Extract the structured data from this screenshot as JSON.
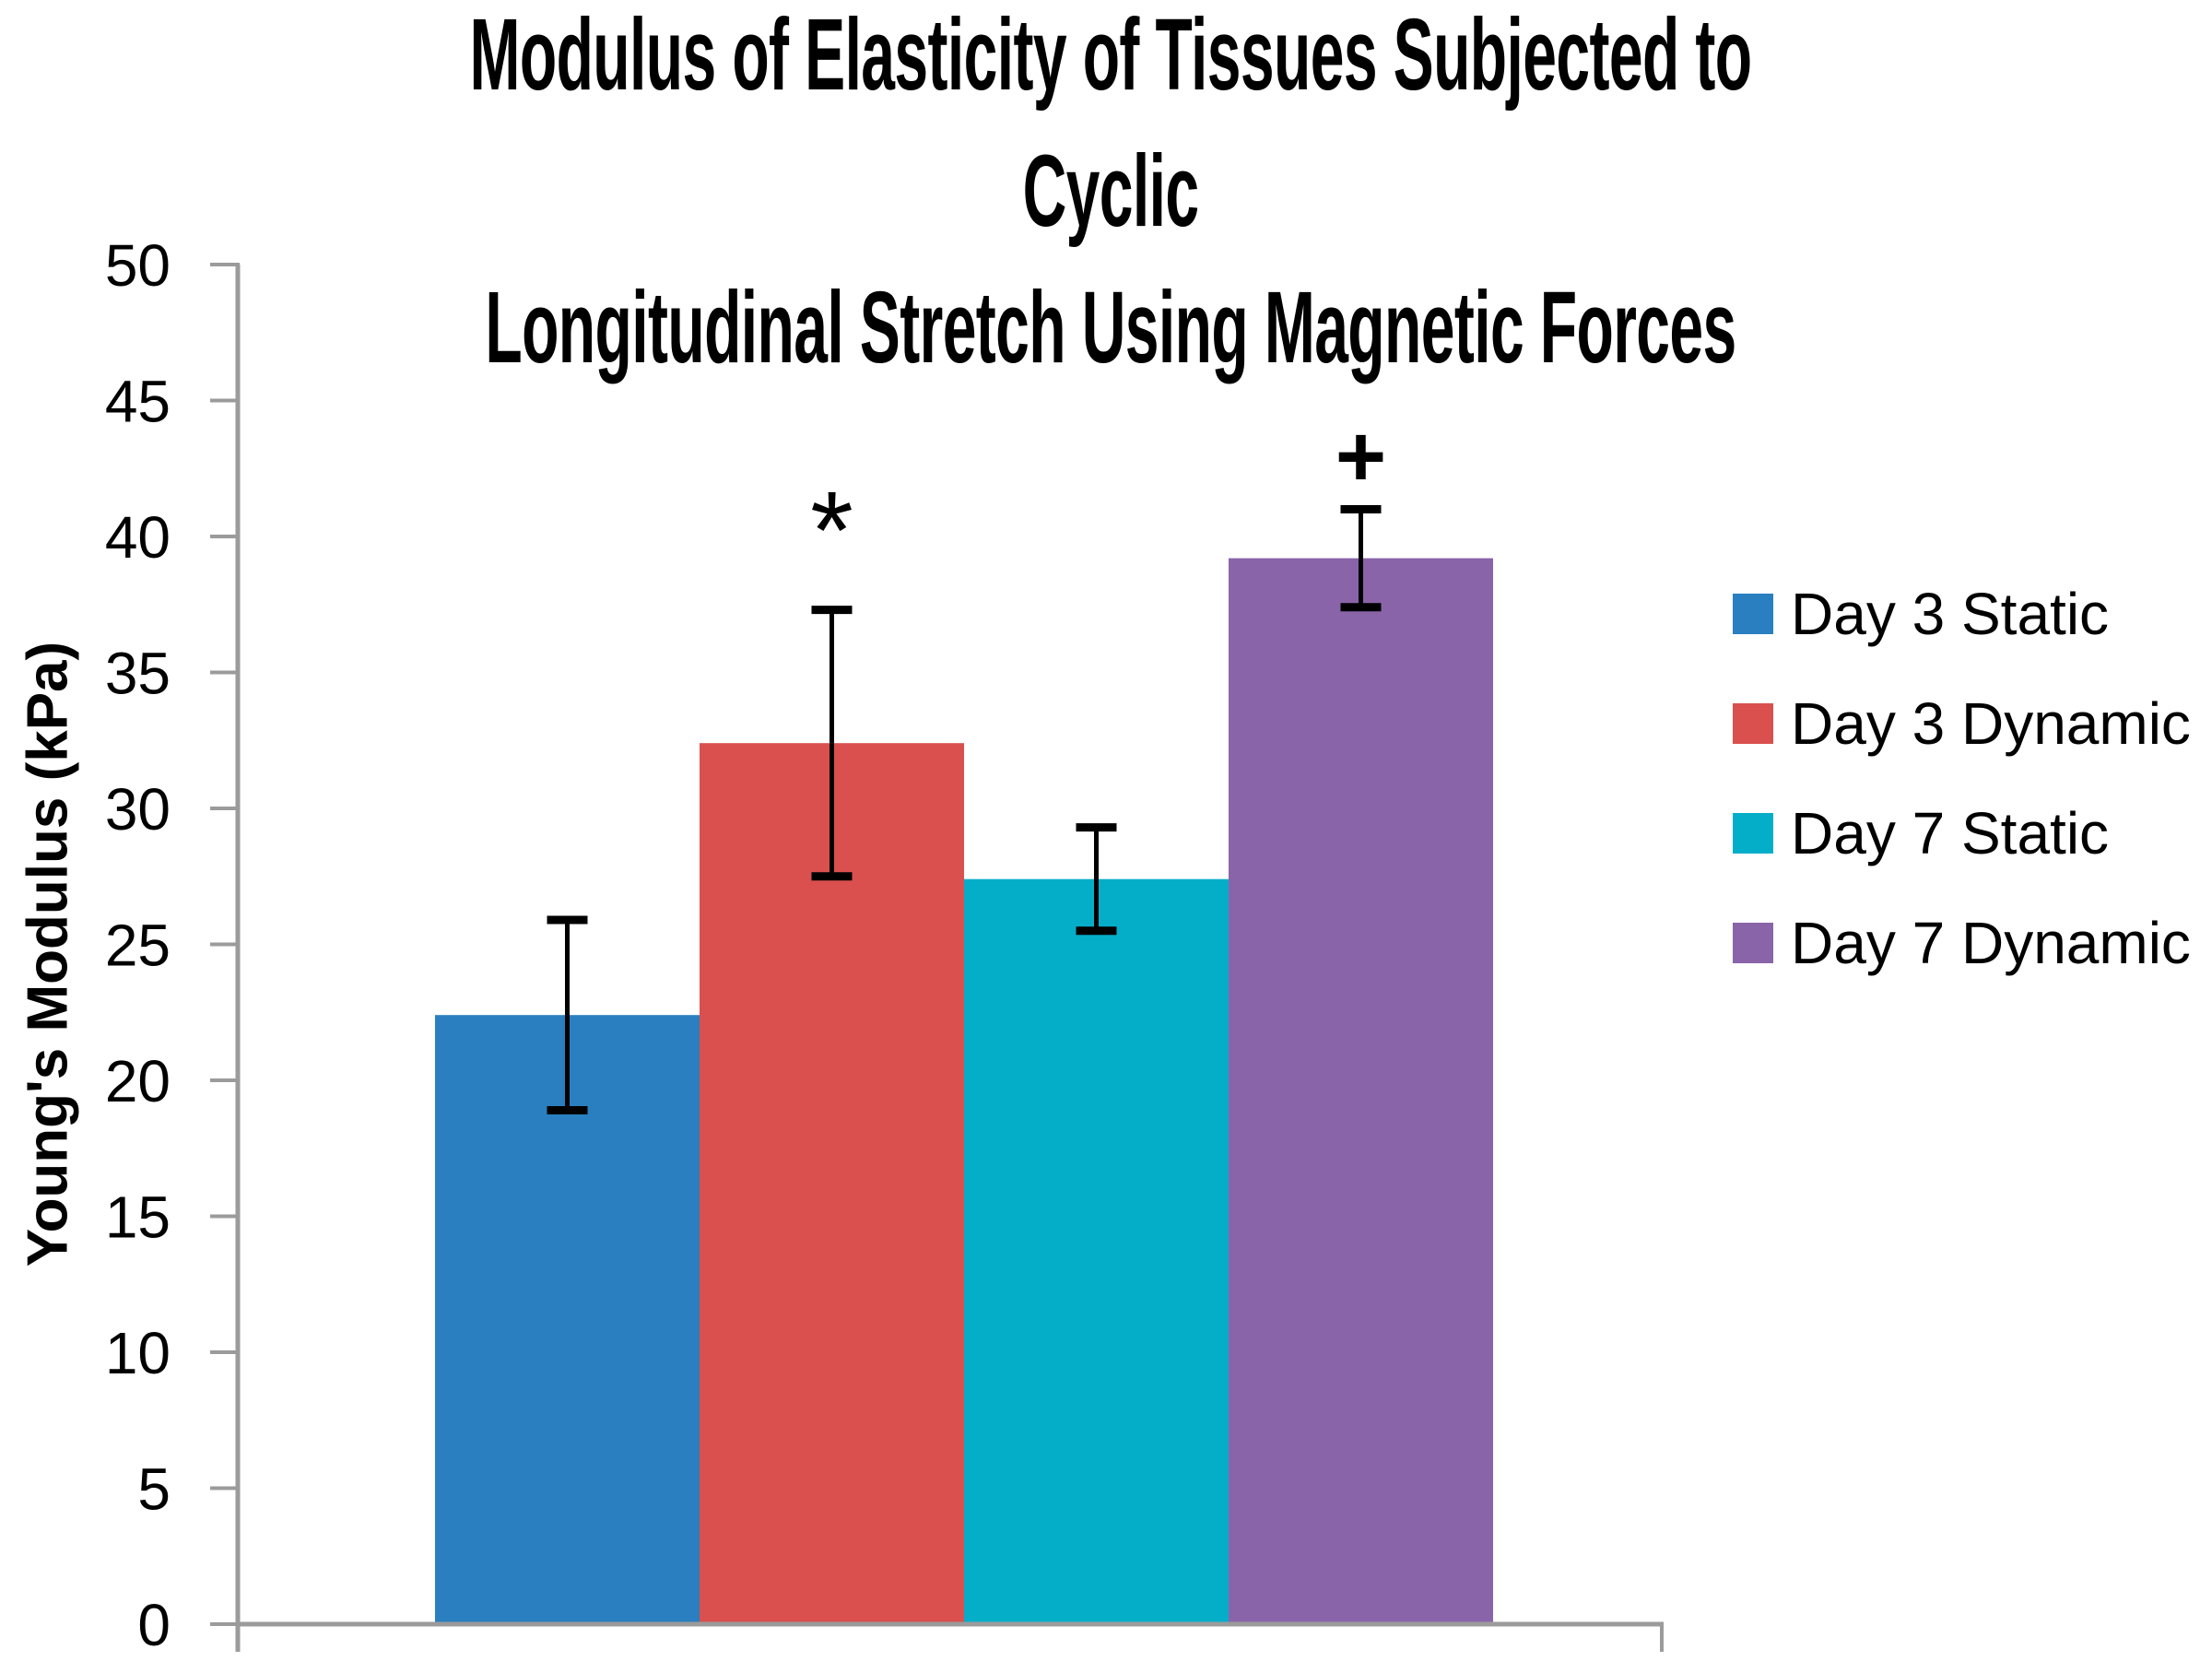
{
  "page": {
    "background": "#ffffff"
  },
  "chart_data": {
    "type": "bar",
    "title": "Modulus of Elasticity of Tissues Subjected to Cyclic Longitudinal Stretch Using Magnetic Forces",
    "title_lines": [
      "Modulus of Elasticity of Tissues Subjected to Cyclic",
      "Longitudinal Stretch Using Magnetic Forces"
    ],
    "ylabel": "Young's Modulus (kPa)",
    "xlabel": "",
    "ylim": [
      0,
      50
    ],
    "ytick_interval": 5,
    "yticks": [
      0,
      5,
      10,
      15,
      20,
      25,
      30,
      35,
      40,
      45,
      50
    ],
    "x_axis_labels": [],
    "grid": false,
    "legend_position": "right",
    "series": [
      {
        "name": "Day 3 Static",
        "value": 22.4,
        "error": 3.5,
        "color": "#2A7FC0",
        "annotation": ""
      },
      {
        "name": "Day 3 Dynamic",
        "value": 32.4,
        "error": 4.9,
        "color": "#D9504E",
        "annotation": "*"
      },
      {
        "name": "Day 7 Static",
        "value": 27.4,
        "error": 1.9,
        "color": "#04AEC9",
        "annotation": ""
      },
      {
        "name": "Day 7 Dynamic",
        "value": 39.2,
        "error": 1.8,
        "color": "#8A64A9",
        "annotation": "+"
      }
    ],
    "annotations": [
      {
        "text": "*",
        "above_series": "Day 3 Dynamic"
      },
      {
        "text": "+",
        "above_series": "Day 7 Dynamic"
      }
    ],
    "error_bar_color": "#000000",
    "axis_color": "#9B9B9B",
    "text_color": "#000000"
  }
}
